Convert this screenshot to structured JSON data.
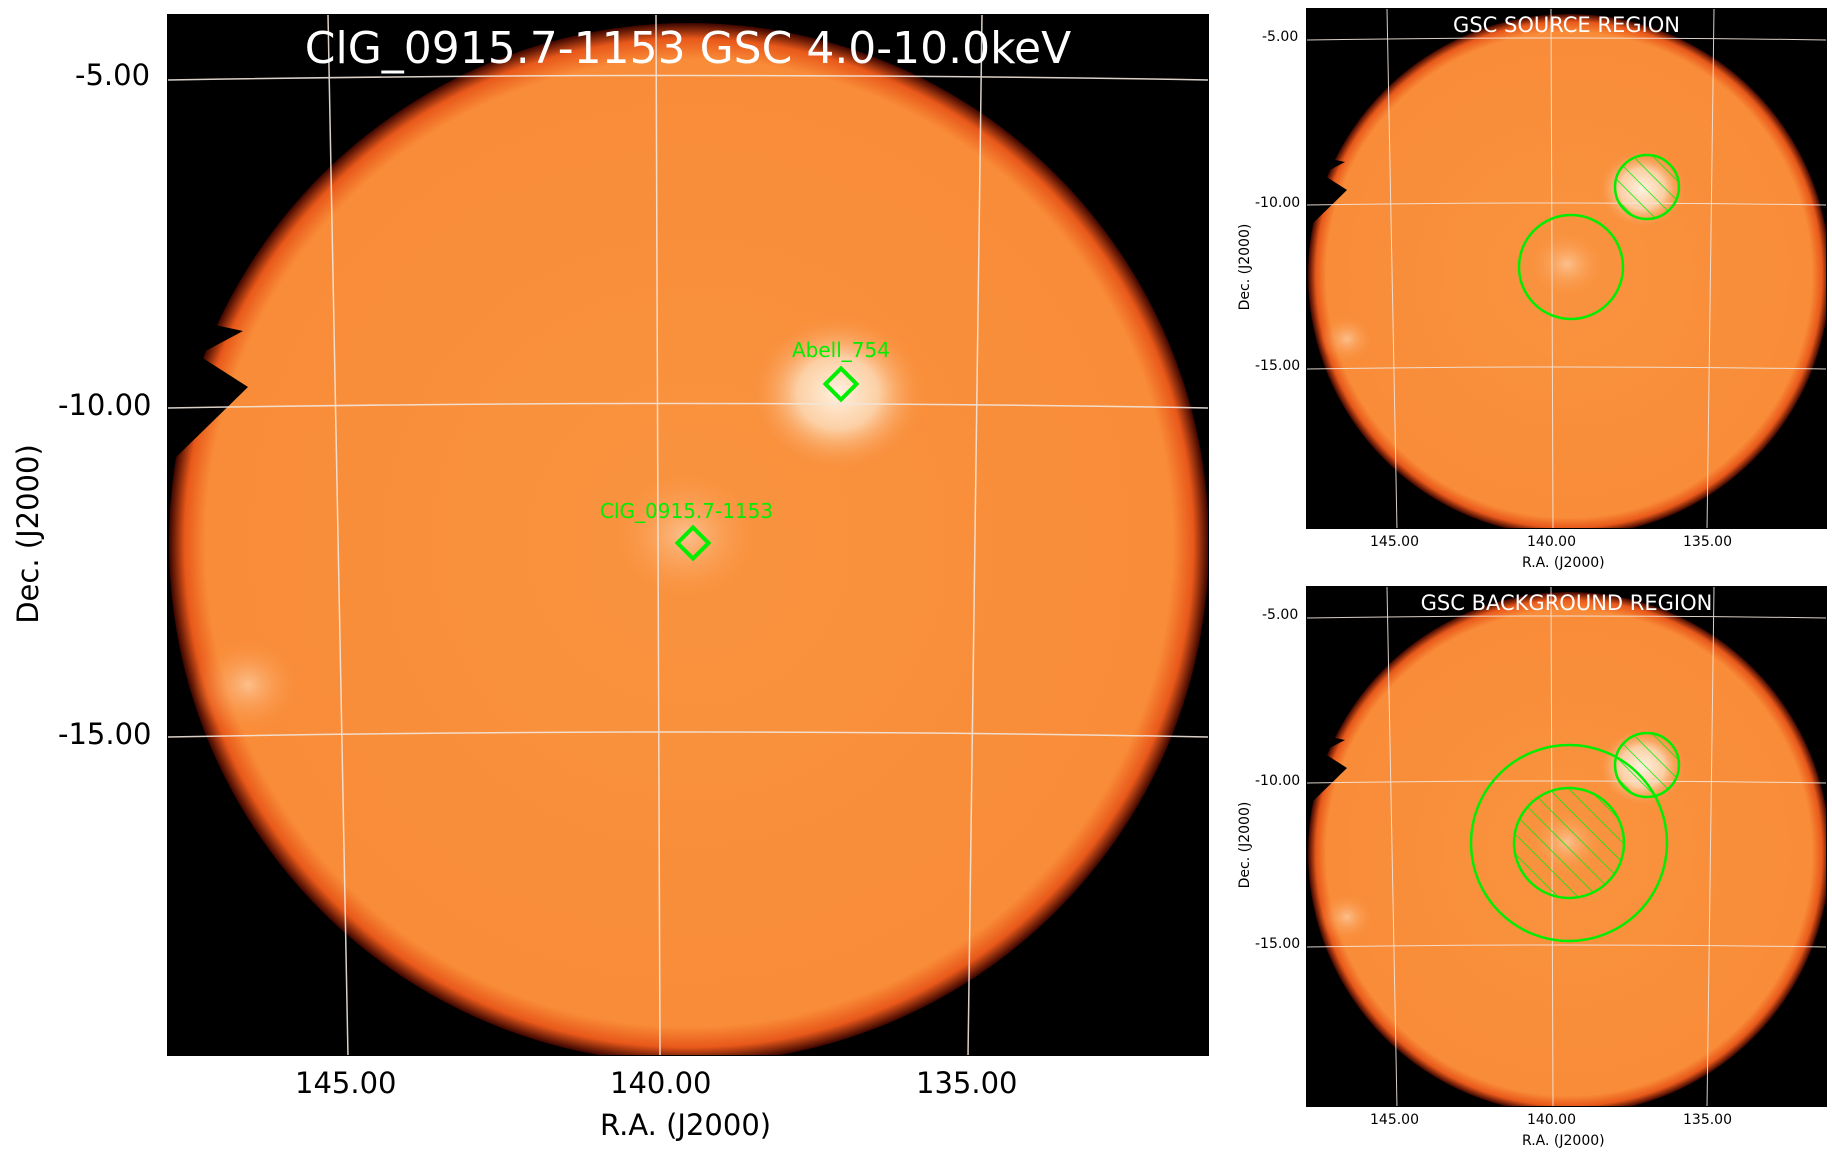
{
  "main_panel": {
    "title": "ClG_0915.7-1153 GSC 4.0-10.0keV",
    "xlabel": "R.A. (J2000)",
    "ylabel": "Dec. (J2000)",
    "x_ticks": [
      "145.00",
      "140.00",
      "135.00"
    ],
    "y_ticks": [
      "-5.00",
      "-10.00",
      "-15.00"
    ],
    "sources": [
      {
        "name": "Abell_754",
        "ra": 137.1,
        "dec": -9.5
      },
      {
        "name": "ClG_0915.7-1153",
        "ra": 139.4,
        "dec": -11.9
      }
    ]
  },
  "source_panel": {
    "title": "GSC SOURCE REGION",
    "xlabel": "R.A. (J2000)",
    "ylabel": "Dec. (J2000)",
    "x_ticks": [
      "145.00",
      "140.00",
      "135.00"
    ],
    "y_ticks": [
      "-5.00",
      "-10.00",
      "-15.00"
    ]
  },
  "background_panel": {
    "title": "GSC BACKGROUND REGION",
    "xlabel": "R.A. (J2000)",
    "ylabel": "Dec. (J2000)",
    "x_ticks": [
      "145.00",
      "140.00",
      "135.00"
    ],
    "y_ticks": [
      "-5.00",
      "-10.00",
      "-15.00"
    ]
  },
  "colors": {
    "field_fill": "#fa8c3a",
    "field_edge": "#d9300a",
    "background": "#000000",
    "region": "#00ee00",
    "grid": "#f2e6dc"
  }
}
